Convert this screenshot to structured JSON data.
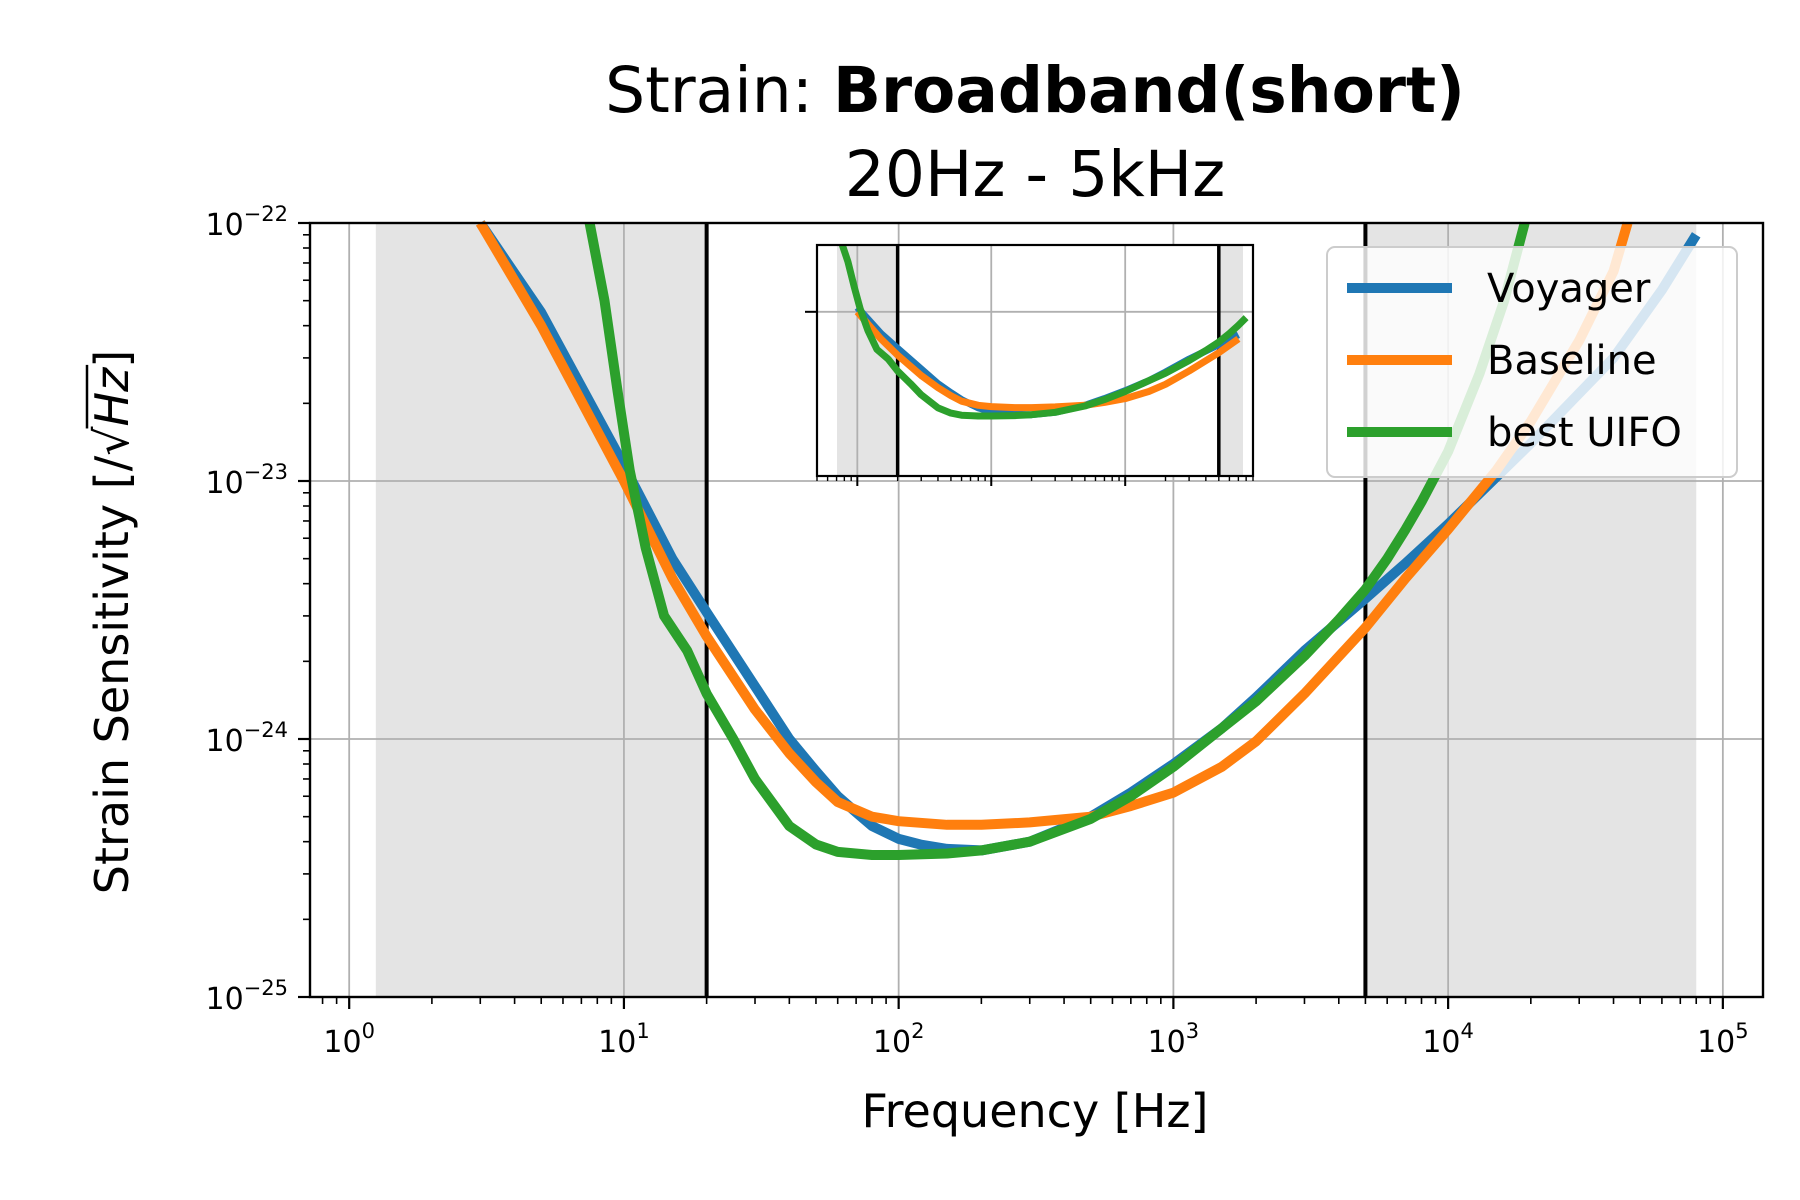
{
  "chart_data": {
    "type": "line",
    "title": {
      "prefix": "Strain: ",
      "bold": "Broadband(short)",
      "subtitle": "20Hz - 5kHz"
    },
    "xlabel": "Frequency [Hz]",
    "ylabel": {
      "prefix": "Strain Sensitivity [/",
      "radicand": "Hz",
      "suffix": "]"
    },
    "xscale": "log",
    "yscale": "log",
    "xlim": [
      0.72,
      140000
    ],
    "ylim": [
      1e-25,
      1e-22
    ],
    "grid": true,
    "x_ticks": [
      {
        "value": 1,
        "base": "10",
        "exp": "0"
      },
      {
        "value": 10,
        "base": "10",
        "exp": "1"
      },
      {
        "value": 100,
        "base": "10",
        "exp": "2"
      },
      {
        "value": 1000,
        "base": "10",
        "exp": "3"
      },
      {
        "value": 10000,
        "base": "10",
        "exp": "4"
      },
      {
        "value": 100000,
        "base": "10",
        "exp": "5"
      }
    ],
    "y_ticks": [
      {
        "value": 1e-25,
        "base": "10",
        "exp": "−25"
      },
      {
        "value": 1e-24,
        "base": "10",
        "exp": "−24"
      },
      {
        "value": 1e-23,
        "base": "10",
        "exp": "−23"
      },
      {
        "value": 1e-22,
        "base": "10",
        "exp": "−22"
      }
    ],
    "shaded_regions": [
      [
        1.25,
        20
      ],
      [
        5000,
        80000
      ]
    ],
    "band_edges": [
      20,
      5000
    ],
    "legend_position": "upper-right",
    "series": [
      {
        "name": "Voyager",
        "color": "#1f77b4",
        "points": [
          [
            3,
            1e-22
          ],
          [
            5,
            4.5e-23
          ],
          [
            10,
            1.15e-23
          ],
          [
            15,
            5e-24
          ],
          [
            20,
            3.1e-24
          ],
          [
            30,
            1.6e-24
          ],
          [
            40,
            1e-24
          ],
          [
            50,
            7.5e-25
          ],
          [
            60,
            6e-25
          ],
          [
            70,
            5.2e-25
          ],
          [
            80,
            4.6e-25
          ],
          [
            100,
            4.1e-25
          ],
          [
            120,
            3.9e-25
          ],
          [
            150,
            3.75e-25
          ],
          [
            200,
            3.7e-25
          ],
          [
            300,
            4e-25
          ],
          [
            500,
            5e-25
          ],
          [
            700,
            6.2e-25
          ],
          [
            1000,
            8e-25
          ],
          [
            1500,
            1.1e-24
          ],
          [
            2000,
            1.45e-24
          ],
          [
            3000,
            2.2e-24
          ],
          [
            5000,
            3.5e-24
          ],
          [
            7000,
            4.8e-24
          ],
          [
            10000,
            6.8e-24
          ],
          [
            20000,
            1.4e-23
          ],
          [
            40000,
            3e-23
          ],
          [
            60000,
            5.5e-23
          ],
          [
            80000,
            9e-23
          ]
        ]
      },
      {
        "name": "Baseline",
        "color": "#ff7f0e",
        "points": [
          [
            3,
            1e-22
          ],
          [
            5,
            4e-23
          ],
          [
            10,
            1e-23
          ],
          [
            15,
            4.2e-24
          ],
          [
            20,
            2.5e-24
          ],
          [
            30,
            1.3e-24
          ],
          [
            40,
            8.8e-25
          ],
          [
            50,
            6.8e-25
          ],
          [
            60,
            5.7e-25
          ],
          [
            80,
            5e-25
          ],
          [
            100,
            4.8e-25
          ],
          [
            150,
            4.65e-25
          ],
          [
            200,
            4.65e-25
          ],
          [
            300,
            4.75e-25
          ],
          [
            500,
            5e-25
          ],
          [
            700,
            5.5e-25
          ],
          [
            1000,
            6.2e-25
          ],
          [
            1500,
            7.8e-25
          ],
          [
            2000,
            9.8e-25
          ],
          [
            3000,
            1.5e-24
          ],
          [
            5000,
            2.7e-24
          ],
          [
            7000,
            4.2e-24
          ],
          [
            10000,
            6.5e-24
          ],
          [
            15000,
            1.1e-23
          ],
          [
            20000,
            1.7e-23
          ],
          [
            30000,
            3.5e-23
          ],
          [
            40000,
            6.5e-23
          ],
          [
            45000,
            1e-22
          ]
        ]
      },
      {
        "name": "best UIFO",
        "color": "#2ca02c",
        "points": [
          [
            7.5,
            1e-22
          ],
          [
            8.5,
            5e-23
          ],
          [
            9.5,
            2.2e-23
          ],
          [
            10.5,
            1.1e-23
          ],
          [
            12,
            5.5e-24
          ],
          [
            14,
            3e-24
          ],
          [
            17,
            2.2e-24
          ],
          [
            20,
            1.5e-24
          ],
          [
            25,
            1e-24
          ],
          [
            30,
            7e-25
          ],
          [
            40,
            4.6e-25
          ],
          [
            50,
            3.9e-25
          ],
          [
            60,
            3.65e-25
          ],
          [
            80,
            3.55e-25
          ],
          [
            100,
            3.55e-25
          ],
          [
            150,
            3.6e-25
          ],
          [
            200,
            3.7e-25
          ],
          [
            300,
            4e-25
          ],
          [
            500,
            4.9e-25
          ],
          [
            700,
            6e-25
          ],
          [
            1000,
            7.8e-25
          ],
          [
            1500,
            1.1e-24
          ],
          [
            2000,
            1.4e-24
          ],
          [
            3000,
            2.1e-24
          ],
          [
            4000,
            2.9e-24
          ],
          [
            5000,
            3.8e-24
          ],
          [
            6000,
            5e-24
          ],
          [
            7000,
            6.5e-24
          ],
          [
            8000,
            8.3e-24
          ],
          [
            10000,
            1.3e-23
          ],
          [
            13000,
            2.6e-23
          ],
          [
            16000,
            5e-23
          ],
          [
            19000,
            1e-22
          ]
        ]
      }
    ],
    "inset": {
      "xlim": [
        5,
        9000
      ],
      "ylim": [
        5.2e-26,
        8.5e-23
      ],
      "x_major_ticks": [
        10,
        100,
        1000
      ],
      "y_major_ticks": [
        1e-23
      ],
      "band_edges": [
        20,
        5000
      ],
      "shaded_regions": [
        [
          5,
          20
        ],
        [
          5000,
          9000
        ]
      ]
    }
  }
}
